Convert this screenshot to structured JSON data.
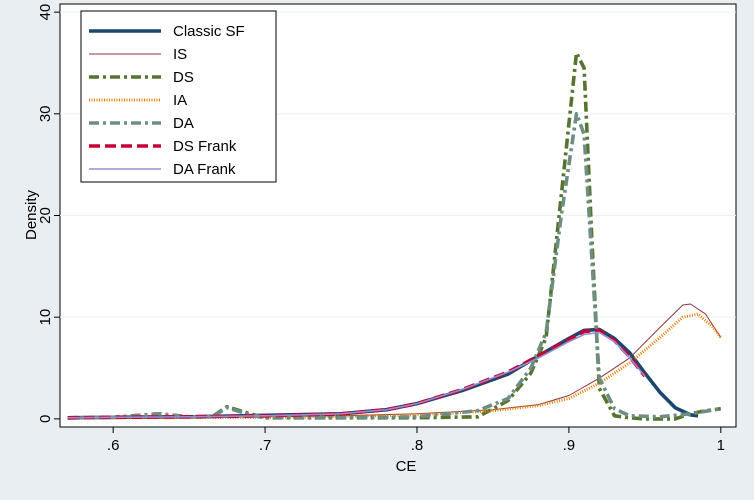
{
  "chart_data": {
    "type": "line",
    "xlabel": "CE",
    "ylabel": "Density",
    "xlim": [
      0.565,
      1.01
    ],
    "ylim": [
      -0.8,
      40.8
    ],
    "xticks": [
      0.6,
      0.7,
      0.8,
      0.9,
      1
    ],
    "xtick_labels": [
      ".6",
      ".7",
      ".8",
      ".9",
      "1"
    ],
    "yticks": [
      0,
      10,
      20,
      30,
      40
    ],
    "ytick_labels": [
      "0",
      "10",
      "20",
      "30",
      "40"
    ],
    "grid": "horizontal",
    "legend_position": "top-left",
    "series": [
      {
        "name": "Classic SF",
        "color": "#1a476f",
        "style": "solid-thick",
        "points": [
          [
            0.57,
            0.1
          ],
          [
            0.6,
            0.15
          ],
          [
            0.65,
            0.2
          ],
          [
            0.7,
            0.35
          ],
          [
            0.75,
            0.5
          ],
          [
            0.78,
            0.9
          ],
          [
            0.8,
            1.5
          ],
          [
            0.83,
            2.8
          ],
          [
            0.86,
            4.4
          ],
          [
            0.88,
            6.2
          ],
          [
            0.9,
            7.9
          ],
          [
            0.91,
            8.7
          ],
          [
            0.92,
            8.8
          ],
          [
            0.93,
            7.9
          ],
          [
            0.94,
            6.5
          ],
          [
            0.95,
            4.5
          ],
          [
            0.96,
            2.6
          ],
          [
            0.97,
            1.1
          ],
          [
            0.98,
            0.4
          ],
          [
            0.985,
            0.3
          ]
        ]
      },
      {
        "name": "IS",
        "color": "#90353b",
        "style": "solid-thin",
        "points": [
          [
            0.57,
            0.1
          ],
          [
            0.62,
            0.1
          ],
          [
            0.7,
            0.2
          ],
          [
            0.75,
            0.3
          ],
          [
            0.8,
            0.5
          ],
          [
            0.85,
            0.9
          ],
          [
            0.88,
            1.4
          ],
          [
            0.9,
            2.3
          ],
          [
            0.92,
            4.0
          ],
          [
            0.94,
            6.0
          ],
          [
            0.96,
            9.0
          ],
          [
            0.975,
            11.2
          ],
          [
            0.98,
            11.3
          ],
          [
            0.99,
            10.3
          ],
          [
            1.0,
            8.0
          ]
        ]
      },
      {
        "name": "DS",
        "color": "#55752f",
        "style": "dash-dot-thick",
        "points": [
          [
            0.57,
            0.1
          ],
          [
            0.6,
            0.15
          ],
          [
            0.63,
            0.5
          ],
          [
            0.65,
            0.2
          ],
          [
            0.665,
            0.2
          ],
          [
            0.675,
            1.2
          ],
          [
            0.69,
            0.5
          ],
          [
            0.7,
            0.1
          ],
          [
            0.75,
            0.1
          ],
          [
            0.8,
            0.1
          ],
          [
            0.84,
            0.2
          ],
          [
            0.86,
            1.8
          ],
          [
            0.875,
            4.5
          ],
          [
            0.885,
            8.0
          ],
          [
            0.895,
            22.0
          ],
          [
            0.905,
            36.0
          ],
          [
            0.91,
            34.5
          ],
          [
            0.915,
            18.0
          ],
          [
            0.92,
            3.0
          ],
          [
            0.93,
            0.3
          ],
          [
            0.94,
            0.1
          ],
          [
            0.95,
            0.0
          ],
          [
            0.97,
            0.0
          ],
          [
            0.98,
            0.5
          ],
          [
            0.99,
            0.8
          ],
          [
            1.0,
            1.0
          ]
        ]
      },
      {
        "name": "IA",
        "color": "#e37e00",
        "style": "dotted",
        "points": [
          [
            0.57,
            0.1
          ],
          [
            0.62,
            0.1
          ],
          [
            0.7,
            0.15
          ],
          [
            0.75,
            0.25
          ],
          [
            0.8,
            0.4
          ],
          [
            0.85,
            0.8
          ],
          [
            0.88,
            1.3
          ],
          [
            0.9,
            2.0
          ],
          [
            0.92,
            3.5
          ],
          [
            0.94,
            5.5
          ],
          [
            0.96,
            8.0
          ],
          [
            0.975,
            10.0
          ],
          [
            0.985,
            10.3
          ],
          [
            0.995,
            9.0
          ],
          [
            1.0,
            8.0
          ]
        ]
      },
      {
        "name": "DA",
        "color": "#6e8e84",
        "style": "dash-dot-thick",
        "points": [
          [
            0.57,
            0.1
          ],
          [
            0.6,
            0.15
          ],
          [
            0.63,
            0.5
          ],
          [
            0.65,
            0.2
          ],
          [
            0.665,
            0.2
          ],
          [
            0.675,
            1.1
          ],
          [
            0.69,
            0.4
          ],
          [
            0.7,
            0.1
          ],
          [
            0.75,
            0.1
          ],
          [
            0.8,
            0.2
          ],
          [
            0.84,
            0.8
          ],
          [
            0.86,
            2.0
          ],
          [
            0.875,
            5.0
          ],
          [
            0.885,
            8.5
          ],
          [
            0.895,
            20.0
          ],
          [
            0.905,
            30.0
          ],
          [
            0.91,
            28.0
          ],
          [
            0.915,
            16.0
          ],
          [
            0.92,
            4.0
          ],
          [
            0.93,
            1.0
          ],
          [
            0.94,
            0.3
          ],
          [
            0.96,
            0.2
          ],
          [
            0.98,
            0.5
          ],
          [
            1.0,
            1.0
          ]
        ]
      },
      {
        "name": "DS Frank",
        "color": "#c10534",
        "style": "dash-thick",
        "points": [
          [
            0.57,
            0.1
          ],
          [
            0.6,
            0.15
          ],
          [
            0.65,
            0.2
          ],
          [
            0.7,
            0.3
          ],
          [
            0.75,
            0.5
          ],
          [
            0.78,
            0.9
          ],
          [
            0.8,
            1.5
          ],
          [
            0.83,
            2.9
          ],
          [
            0.86,
            4.6
          ],
          [
            0.88,
            6.2
          ],
          [
            0.9,
            7.8
          ],
          [
            0.91,
            8.6
          ],
          [
            0.92,
            8.7
          ],
          [
            0.93,
            7.7
          ],
          [
            0.94,
            6.1
          ],
          [
            0.95,
            4.2
          ]
        ]
      },
      {
        "name": "DA Frank",
        "color": "#938dd2",
        "style": "solid-medium",
        "points": [
          [
            0.57,
            0.1
          ],
          [
            0.6,
            0.15
          ],
          [
            0.65,
            0.2
          ],
          [
            0.7,
            0.3
          ],
          [
            0.75,
            0.5
          ],
          [
            0.78,
            0.9
          ],
          [
            0.8,
            1.5
          ],
          [
            0.83,
            2.9
          ],
          [
            0.86,
            4.6
          ],
          [
            0.88,
            6.0
          ],
          [
            0.9,
            7.6
          ],
          [
            0.91,
            8.3
          ],
          [
            0.92,
            8.5
          ],
          [
            0.93,
            7.6
          ],
          [
            0.94,
            6.0
          ],
          [
            0.95,
            4.2
          ]
        ]
      }
    ]
  }
}
